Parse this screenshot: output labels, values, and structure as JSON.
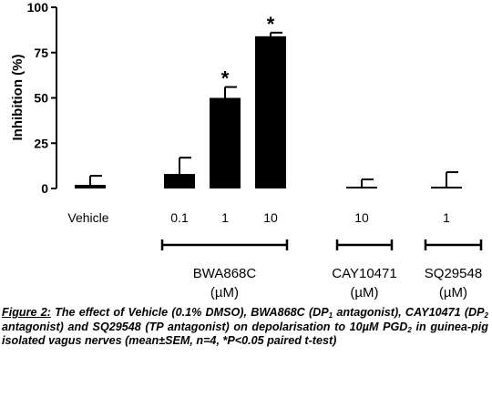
{
  "chart_data": {
    "type": "bar",
    "ylabel": "Inhibition (%)",
    "ylim": [
      0,
      100
    ],
    "yticks": [
      "0",
      "25",
      "50",
      "75",
      "100"
    ],
    "categories": [
      "Vehicle",
      "0.1",
      "1",
      "10",
      "10",
      "1"
    ],
    "values": [
      2,
      8,
      50,
      84,
      0,
      1
    ],
    "sem": [
      5,
      9,
      6,
      2,
      5,
      8
    ],
    "significant": [
      false,
      false,
      true,
      true,
      false,
      false
    ],
    "significance_marker": "*",
    "groups": [
      {
        "name": "BWA868C",
        "unit": "(µM)"
      },
      {
        "name": "CAY10471",
        "unit": "(µM)"
      },
      {
        "name": "SQ29548",
        "unit": "(µM)"
      }
    ],
    "bar_color": "#000000"
  },
  "caption": {
    "figure_label": "Figure 2:",
    "text_1": " The effect of Vehicle (0.1% DMSO), BWA868C (DP",
    "sub_1": "1",
    "text_2": " antagonist), CAY10471 (DP",
    "sub_2": "2",
    "text_3": " antagonist) and SQ29548 (TP antagonist) on depolarisation to 10µM PGD",
    "sub_3": "2",
    "text_4": " in guinea-pig isolated vagus nerves (mean±SEM, n=4, *P<0.05 paired t-test)"
  }
}
